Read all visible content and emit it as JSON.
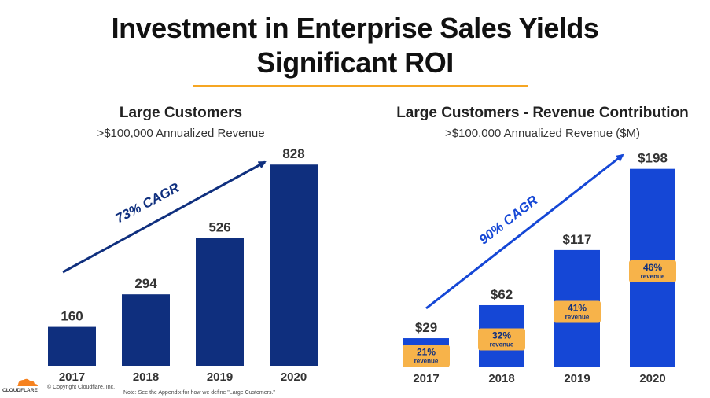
{
  "slide": {
    "title_line1": "Investment in Enterprise Sales Yields",
    "title_line2": "Significant ROI",
    "accent_color": "#f6a623"
  },
  "chart_data": [
    {
      "type": "bar",
      "title": "Large Customers",
      "subtitle": ">$100,000 Annualized Revenue",
      "categories": [
        "2017",
        "2018",
        "2019",
        "2020"
      ],
      "values": [
        160,
        294,
        526,
        828
      ],
      "value_labels": [
        "160",
        "294",
        "526",
        "828"
      ],
      "annotation": "73% CAGR",
      "bar_color": "#0f2f7e",
      "ylim": [
        0,
        900
      ]
    },
    {
      "type": "bar",
      "title": "Large Customers - Revenue Contribution",
      "subtitle": ">$100,000 Annualized Revenue ($M)",
      "categories": [
        "2017",
        "2018",
        "2019",
        "2020"
      ],
      "values": [
        29,
        62,
        117,
        198
      ],
      "value_labels": [
        "$29",
        "$62",
        "$117",
        "$198"
      ],
      "share_of_revenue": [
        "21%",
        "32%",
        "41%",
        "46%"
      ],
      "share_label": "revenue",
      "annotation": "90% CAGR",
      "bar_color": "#1547d6",
      "badge_color": "#f7b34a",
      "ylim": [
        0,
        215
      ]
    }
  ],
  "footer": {
    "logo_text": "CLOUDFLARE",
    "copyright": "© Copyright Cloudflare, Inc.",
    "note": "Note: See the Appendix for how we define \"Large Customers.\""
  }
}
